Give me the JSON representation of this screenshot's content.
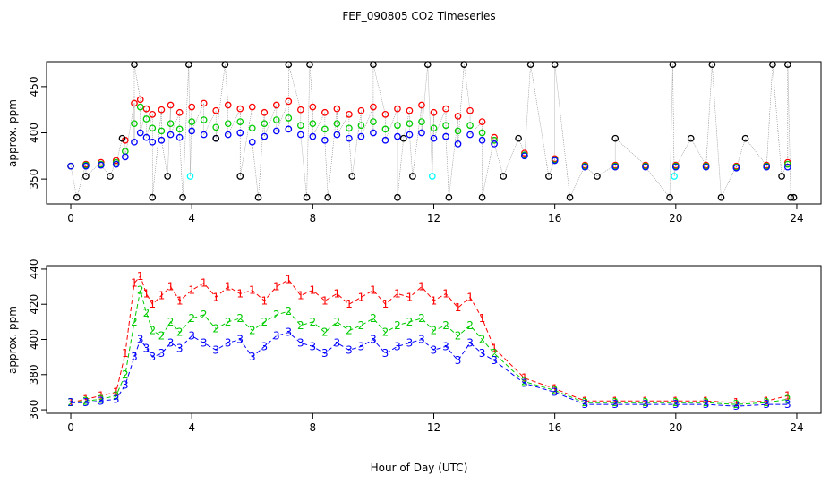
{
  "title": "FEF_090805  CO2 Timeseries",
  "xlabel": "Hour of Day (UTC)",
  "chart_data": [
    {
      "type": "scatter",
      "ylabel": "approx. ppm",
      "xlim": [
        -0.8,
        24.8
      ],
      "ylim": [
        323,
        477
      ],
      "xticks": [
        0,
        4,
        8,
        12,
        16,
        20,
        24
      ],
      "yticks": [
        350,
        400,
        450
      ],
      "colors": {
        "red": "#ff0000",
        "green": "#00cc00",
        "blue": "#0000ff",
        "black": "#000000",
        "cyan": "#00ffff",
        "grey": "#888888"
      },
      "series": [
        {
          "color": "red",
          "x": [
            0,
            0.5,
            1,
            1.5,
            1.8,
            2.1,
            2.3,
            2.5,
            2.7,
            3,
            3.3,
            3.6,
            4,
            4.4,
            4.8,
            5.2,
            5.6,
            6,
            6.4,
            6.8,
            7.2,
            7.6,
            8,
            8.4,
            8.8,
            9.2,
            9.6,
            10,
            10.4,
            10.8,
            11.2,
            11.6,
            12,
            12.4,
            12.8,
            13.2,
            13.6,
            14,
            15,
            16,
            17,
            18,
            19,
            20,
            21,
            22,
            23,
            23.7
          ],
          "y": [
            364,
            366,
            368,
            370,
            392,
            432,
            436,
            426,
            420,
            425,
            430,
            422,
            428,
            432,
            424,
            430,
            426,
            428,
            422,
            430,
            434,
            425,
            428,
            422,
            426,
            420,
            424,
            428,
            420,
            426,
            424,
            430,
            422,
            426,
            418,
            424,
            412,
            395,
            378,
            372,
            365,
            365,
            365,
            365,
            365,
            364,
            365,
            368
          ]
        },
        {
          "color": "green",
          "x": [
            0,
            0.5,
            1,
            1.5,
            1.8,
            2.1,
            2.3,
            2.5,
            2.7,
            3,
            3.3,
            3.6,
            4,
            4.4,
            4.8,
            5.2,
            5.6,
            6,
            6.4,
            6.8,
            7.2,
            7.6,
            8,
            8.4,
            8.8,
            9.2,
            9.6,
            10,
            10.4,
            10.8,
            11.2,
            11.6,
            12,
            12.4,
            12.8,
            13.2,
            13.6,
            14,
            15,
            16,
            17,
            18,
            19,
            20,
            21,
            22,
            23,
            23.7
          ],
          "y": [
            364,
            365,
            366,
            368,
            380,
            410,
            428,
            415,
            405,
            402,
            410,
            404,
            412,
            414,
            406,
            410,
            412,
            405,
            410,
            414,
            416,
            408,
            410,
            404,
            410,
            405,
            408,
            412,
            404,
            408,
            410,
            412,
            405,
            408,
            402,
            408,
            400,
            392,
            376,
            371,
            364,
            364,
            364,
            364,
            364,
            363,
            364,
            366
          ]
        },
        {
          "color": "blue",
          "x": [
            0,
            0.5,
            1,
            1.5,
            1.8,
            2.1,
            2.3,
            2.5,
            2.7,
            3,
            3.3,
            3.6,
            4,
            4.4,
            4.8,
            5.2,
            5.6,
            6,
            6.4,
            6.8,
            7.2,
            7.6,
            8,
            8.4,
            8.8,
            9.2,
            9.6,
            10,
            10.4,
            10.8,
            11.2,
            11.6,
            12,
            12.4,
            12.8,
            13.2,
            13.6,
            14,
            15,
            16,
            17,
            18,
            19,
            20,
            21,
            22,
            23,
            23.7
          ],
          "y": [
            364,
            364,
            365,
            366,
            374,
            390,
            400,
            395,
            390,
            392,
            398,
            395,
            402,
            398,
            394,
            398,
            400,
            390,
            396,
            402,
            404,
            398,
            396,
            392,
            398,
            394,
            396,
            400,
            392,
            396,
            398,
            400,
            394,
            396,
            388,
            398,
            392,
            388,
            375,
            370,
            363,
            363,
            363,
            363,
            363,
            362,
            363,
            363
          ]
        },
        {
          "color": "black",
          "x": [
            0.2,
            0.5,
            1.3,
            1.7,
            2.1,
            2.7,
            3.2,
            3.7,
            3.9,
            4.8,
            5.1,
            5.6,
            6.2,
            7.2,
            7.8,
            7.9,
            8.5,
            9.3,
            10.0,
            10.8,
            11.0,
            11.3,
            11.8,
            12.5,
            13.0,
            13.6,
            14.3,
            14.8,
            15.2,
            15.8,
            16.0,
            16.5,
            17.4,
            18.0,
            19.8,
            19.9,
            20.5,
            21.2,
            21.5,
            22.3,
            23.2,
            23.5,
            23.7,
            23.8,
            23.9
          ],
          "y": [
            330,
            353,
            353,
            394,
            474,
            330,
            353,
            330,
            474,
            394,
            474,
            353,
            330,
            474,
            330,
            474,
            330,
            353,
            474,
            330,
            394,
            353,
            474,
            330,
            474,
            330,
            353,
            394,
            474,
            353,
            474,
            330,
            353,
            394,
            330,
            474,
            394,
            474,
            330,
            394,
            474,
            353,
            474,
            330,
            330
          ]
        },
        {
          "color": "cyan",
          "x": [
            3.95,
            11.95,
            19.95
          ],
          "y": [
            353,
            353,
            353
          ]
        }
      ]
    },
    {
      "type": "line",
      "ylabel": "approx. ppm",
      "xlim": [
        -0.8,
        24.8
      ],
      "ylim": [
        358,
        442
      ],
      "xticks": [
        0,
        4,
        8,
        12,
        16,
        20,
        24
      ],
      "yticks": [
        360,
        380,
        400,
        420,
        440
      ],
      "series": [
        {
          "marker": "1",
          "color": "red",
          "x": [
            0,
            0.5,
            1,
            1.5,
            1.8,
            2.1,
            2.3,
            2.5,
            2.7,
            3,
            3.3,
            3.6,
            4,
            4.4,
            4.8,
            5.2,
            5.6,
            6,
            6.4,
            6.8,
            7.2,
            7.6,
            8,
            8.4,
            8.8,
            9.2,
            9.6,
            10,
            10.4,
            10.8,
            11.2,
            11.6,
            12,
            12.4,
            12.8,
            13.2,
            13.6,
            14,
            15,
            16,
            17,
            18,
            19,
            20,
            21,
            22,
            23,
            23.7
          ],
          "y": [
            364,
            366,
            368,
            370,
            392,
            432,
            436,
            426,
            420,
            425,
            430,
            422,
            428,
            432,
            424,
            430,
            426,
            428,
            422,
            430,
            434,
            425,
            428,
            422,
            426,
            420,
            424,
            428,
            420,
            426,
            424,
            430,
            422,
            426,
            418,
            424,
            412,
            395,
            378,
            372,
            365,
            365,
            365,
            365,
            365,
            364,
            365,
            368
          ]
        },
        {
          "marker": "2",
          "color": "green",
          "x": [
            0,
            0.5,
            1,
            1.5,
            1.8,
            2.1,
            2.3,
            2.5,
            2.7,
            3,
            3.3,
            3.6,
            4,
            4.4,
            4.8,
            5.2,
            5.6,
            6,
            6.4,
            6.8,
            7.2,
            7.6,
            8,
            8.4,
            8.8,
            9.2,
            9.6,
            10,
            10.4,
            10.8,
            11.2,
            11.6,
            12,
            12.4,
            12.8,
            13.2,
            13.6,
            14,
            15,
            16,
            17,
            18,
            19,
            20,
            21,
            22,
            23,
            23.7
          ],
          "y": [
            364,
            365,
            366,
            368,
            380,
            410,
            428,
            415,
            405,
            402,
            410,
            404,
            412,
            414,
            406,
            410,
            412,
            405,
            410,
            414,
            416,
            408,
            410,
            404,
            410,
            405,
            408,
            412,
            404,
            408,
            410,
            412,
            405,
            408,
            402,
            408,
            400,
            392,
            376,
            371,
            364,
            364,
            364,
            364,
            364,
            363,
            364,
            366
          ]
        },
        {
          "marker": "3",
          "color": "blue",
          "x": [
            0,
            0.5,
            1,
            1.5,
            1.8,
            2.1,
            2.3,
            2.5,
            2.7,
            3,
            3.3,
            3.6,
            4,
            4.4,
            4.8,
            5.2,
            5.6,
            6,
            6.4,
            6.8,
            7.2,
            7.6,
            8,
            8.4,
            8.8,
            9.2,
            9.6,
            10,
            10.4,
            10.8,
            11.2,
            11.6,
            12,
            12.4,
            12.8,
            13.2,
            13.6,
            14,
            15,
            16,
            17,
            18,
            19,
            20,
            21,
            22,
            23,
            23.7
          ],
          "y": [
            364,
            364,
            365,
            366,
            374,
            390,
            400,
            395,
            390,
            392,
            398,
            395,
            402,
            398,
            394,
            398,
            400,
            390,
            396,
            402,
            404,
            398,
            396,
            392,
            398,
            394,
            396,
            400,
            392,
            396,
            398,
            400,
            394,
            396,
            388,
            398,
            392,
            388,
            375,
            370,
            363,
            363,
            363,
            363,
            363,
            362,
            363,
            363
          ]
        }
      ]
    }
  ]
}
